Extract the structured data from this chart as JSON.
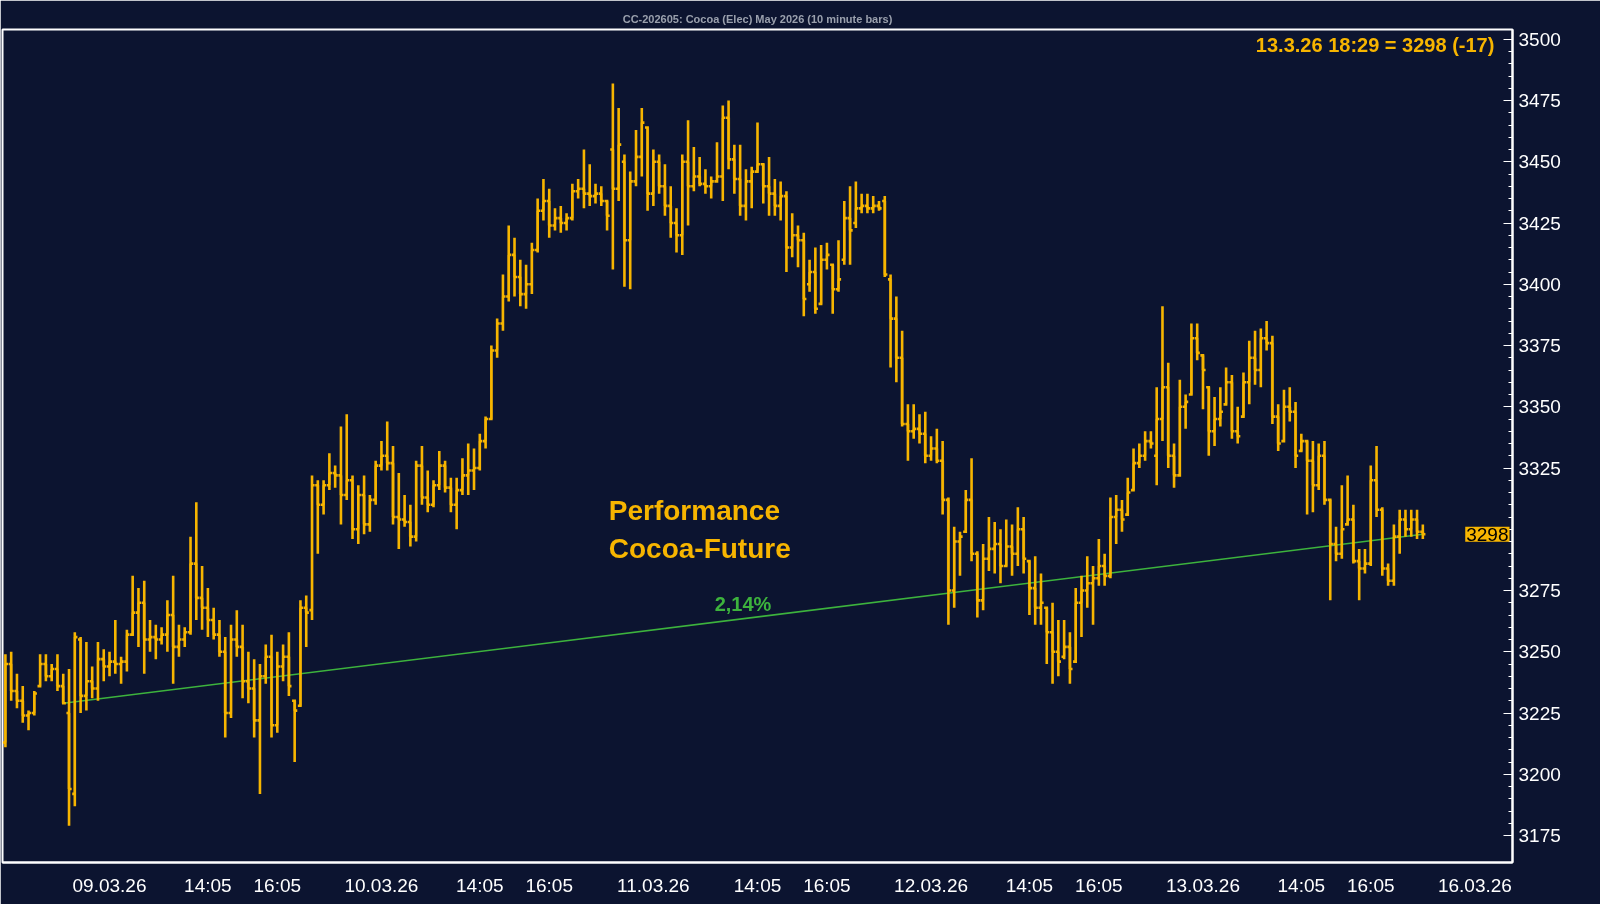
{
  "chart_data": {
    "type": "candlestick",
    "title": "CC-202605: Cocoa (Elec) May 2026 (10 minute bars)",
    "color": "#f7b500",
    "categories": [
      null,
      null,
      null,
      null,
      null,
      null,
      null,
      null,
      null,
      null,
      null,
      null,
      null,
      null,
      null,
      null,
      null,
      null,
      "09.03.26",
      null,
      null,
      null,
      null,
      null,
      null,
      null,
      null,
      null,
      null,
      null,
      null,
      null,
      null,
      null,
      null,
      "14:05",
      null,
      null,
      null,
      null,
      null,
      null,
      null,
      null,
      null,
      null,
      null,
      "16:05",
      null,
      null,
      null,
      null,
      null,
      null,
      null,
      null,
      null,
      null,
      null,
      null,
      null,
      null,
      null,
      null,
      null,
      "10.03.26",
      null,
      null,
      null,
      null,
      null,
      null,
      null,
      null,
      null,
      null,
      null,
      null,
      null,
      null,
      null,
      null,
      "14:05",
      null,
      null,
      null,
      null,
      null,
      null,
      null,
      null,
      null,
      null,
      null,
      "16:05",
      null,
      null,
      null,
      null,
      null,
      null,
      null,
      null,
      null,
      null,
      null,
      null,
      null,
      null,
      null,
      null,
      null,
      "11.03.26",
      null,
      null,
      null,
      null,
      null,
      null,
      null,
      null,
      null,
      null,
      null,
      null,
      null,
      null,
      null,
      null,
      null,
      "14:05",
      null,
      null,
      null,
      null,
      null,
      null,
      null,
      null,
      null,
      null,
      null,
      "16:05",
      null,
      null,
      null,
      null,
      null,
      null,
      null,
      null,
      null,
      null,
      null,
      null,
      null,
      null,
      null,
      null,
      null,
      "12.03.26",
      null,
      null,
      null,
      null,
      null,
      null,
      null,
      null,
      null,
      null,
      null,
      null,
      null,
      null,
      null,
      null,
      "14:05",
      null,
      null,
      null,
      null,
      null,
      null,
      null,
      null,
      null,
      null,
      null,
      "16:05",
      null,
      null,
      null,
      null,
      null,
      null,
      null,
      null,
      null,
      null,
      null,
      null,
      null,
      null,
      null,
      null,
      null,
      "13.03.26",
      null,
      null,
      null,
      null,
      null,
      null,
      null,
      null,
      null,
      null,
      null,
      null,
      null,
      null,
      null,
      null,
      "14:05",
      null,
      null,
      null,
      null,
      null,
      null,
      null,
      null,
      null,
      null,
      null,
      "16:05",
      null,
      null,
      null,
      null,
      null,
      null,
      null,
      null,
      null,
      null,
      null,
      null,
      null,
      null,
      null,
      null,
      null,
      "16.03.26",
      null,
      null,
      null,
      null,
      null,
      null
    ],
    "ohlc": [
      [
        3213,
        3249,
        3211,
        3245
      ],
      [
        3245,
        3250,
        3230,
        3234
      ],
      [
        3234,
        3241,
        3227,
        3230
      ],
      [
        3230,
        3236,
        3221,
        3224
      ],
      [
        3224,
        3226,
        3218,
        3225
      ],
      [
        3225,
        3234,
        3224,
        3233
      ],
      [
        3236,
        3249,
        3236,
        3245
      ],
      [
        3245,
        3249,
        3238,
        3240
      ],
      [
        3240,
        3245,
        3238,
        3243
      ],
      [
        3243,
        3249,
        3234,
        3236
      ],
      [
        3236,
        3241,
        3229,
        3229
      ],
      [
        3225,
        3243,
        3179,
        3194
      ],
      [
        3192,
        3258,
        3187,
        3256
      ],
      [
        3255,
        3256,
        3225,
        3232
      ],
      [
        3232,
        3254,
        3226,
        3238
      ],
      [
        3238,
        3244,
        3231,
        3235
      ],
      [
        3235,
        3254,
        3230,
        3247
      ],
      [
        3247,
        3251,
        3238,
        3244
      ],
      [
        3244,
        3250,
        3240,
        3246
      ],
      [
        3246,
        3263,
        3241,
        3245
      ],
      [
        3245,
        3248,
        3237,
        3246
      ],
      [
        3246,
        3259,
        3242,
        3257
      ],
      [
        3257,
        3281,
        3257,
        3266
      ],
      [
        3266,
        3276,
        3252,
        3270
      ],
      [
        3270,
        3279,
        3241,
        3255
      ],
      [
        3255,
        3263,
        3250,
        3256
      ],
      [
        3256,
        3261,
        3247,
        3255
      ],
      [
        3255,
        3260,
        3253,
        3257
      ],
      [
        3257,
        3271,
        3250,
        3265
      ],
      [
        3265,
        3281,
        3237,
        3252
      ],
      [
        3252,
        3261,
        3248,
        3255
      ],
      [
        3255,
        3260,
        3252,
        3258
      ],
      [
        3258,
        3297,
        3257,
        3286
      ],
      [
        3286,
        3311,
        3263,
        3272
      ],
      [
        3272,
        3285,
        3259,
        3268
      ],
      [
        3268,
        3276,
        3256,
        3263
      ],
      [
        3263,
        3268,
        3255,
        3257
      ],
      [
        3257,
        3263,
        3248,
        3250
      ],
      [
        3250,
        3256,
        3215,
        3225
      ],
      [
        3225,
        3261,
        3223,
        3255
      ],
      [
        3255,
        3267,
        3248,
        3252
      ],
      [
        3252,
        3261,
        3231,
        3238
      ],
      [
        3238,
        3250,
        3229,
        3235
      ],
      [
        3235,
        3247,
        3215,
        3222
      ],
      [
        3222,
        3245,
        3192,
        3240
      ],
      [
        3240,
        3253,
        3237,
        3248
      ],
      [
        3248,
        3257,
        3215,
        3220
      ],
      [
        3220,
        3250,
        3217,
        3244
      ],
      [
        3244,
        3253,
        3238,
        3248
      ],
      [
        3248,
        3258,
        3232,
        3236
      ],
      [
        3230,
        3230,
        3205,
        3226
      ],
      [
        3228,
        3271,
        3228,
        3268
      ],
      [
        3268,
        3273,
        3252,
        3266
      ],
      [
        3267,
        3322,
        3263,
        3318
      ],
      [
        3318,
        3320,
        3290,
        3310
      ],
      [
        3310,
        3320,
        3306,
        3318
      ],
      [
        3318,
        3331,
        3316,
        3323
      ],
      [
        3323,
        3326,
        3317,
        3322
      ],
      [
        3322,
        3342,
        3302,
        3314
      ],
      [
        3314,
        3347,
        3312,
        3320
      ],
      [
        3320,
        3322,
        3296,
        3300
      ],
      [
        3300,
        3318,
        3294,
        3314
      ],
      [
        3314,
        3322,
        3298,
        3302
      ],
      [
        3302,
        3314,
        3299,
        3312
      ],
      [
        3312,
        3328,
        3310,
        3326
      ],
      [
        3326,
        3336,
        3324,
        3330
      ],
      [
        3330,
        3344,
        3324,
        3327
      ],
      [
        3327,
        3334,
        3302,
        3305
      ],
      [
        3305,
        3323,
        3292,
        3304
      ],
      [
        3304,
        3314,
        3301,
        3303
      ],
      [
        3303,
        3310,
        3293,
        3297
      ],
      [
        3297,
        3328,
        3295,
        3326
      ],
      [
        3326,
        3334,
        3310,
        3313
      ],
      [
        3313,
        3324,
        3307,
        3310
      ],
      [
        3310,
        3320,
        3309,
        3318
      ],
      [
        3318,
        3332,
        3316,
        3326
      ],
      [
        3326,
        3328,
        3315,
        3317
      ],
      [
        3317,
        3321,
        3307,
        3310
      ],
      [
        3310,
        3321,
        3300,
        3316
      ],
      [
        3316,
        3329,
        3314,
        3322
      ],
      [
        3322,
        3335,
        3314,
        3324
      ],
      [
        3324,
        3333,
        3316,
        3325
      ],
      [
        3325,
        3339,
        3324,
        3336
      ],
      [
        3336,
        3346,
        3333,
        3345
      ],
      [
        3345,
        3375,
        3345,
        3373
      ],
      [
        3373,
        3386,
        3370,
        3384
      ],
      [
        3384,
        3404,
        3381,
        3395
      ],
      [
        3395,
        3424,
        3393,
        3412
      ],
      [
        3412,
        3419,
        3395,
        3403
      ],
      [
        3403,
        3410,
        3391,
        3396
      ],
      [
        3396,
        3408,
        3390,
        3400
      ],
      [
        3400,
        3417,
        3396,
        3414
      ],
      [
        3414,
        3435,
        3413,
        3430
      ],
      [
        3430,
        3443,
        3426,
        3434
      ],
      [
        3434,
        3439,
        3419,
        3424
      ],
      [
        3424,
        3431,
        3422,
        3427
      ],
      [
        3427,
        3432,
        3421,
        3425
      ],
      [
        3425,
        3429,
        3422,
        3427
      ],
      [
        3427,
        3441,
        3426,
        3438
      ],
      [
        3438,
        3443,
        3435,
        3439
      ],
      [
        3439,
        3455,
        3431,
        3437
      ],
      [
        3437,
        3449,
        3432,
        3436
      ],
      [
        3436,
        3441,
        3433,
        3437
      ],
      [
        3437,
        3440,
        3432,
        3434
      ],
      [
        3434,
        3434,
        3422,
        3428
      ],
      [
        3455,
        3482,
        3406,
        3439
      ],
      [
        3439,
        3472,
        3434,
        3457
      ],
      [
        3450,
        3453,
        3399,
        3418
      ],
      [
        3418,
        3446,
        3398,
        3442
      ],
      [
        3442,
        3463,
        3440,
        3452
      ],
      [
        3452,
        3472,
        3444,
        3466
      ],
      [
        3464,
        3464,
        3430,
        3437
      ],
      [
        3437,
        3455,
        3432,
        3450
      ],
      [
        3450,
        3453,
        3437,
        3440
      ],
      [
        3440,
        3449,
        3428,
        3432
      ],
      [
        3432,
        3440,
        3419,
        3425
      ],
      [
        3425,
        3431,
        3413,
        3420
      ],
      [
        3420,
        3453,
        3412,
        3450
      ],
      [
        3450,
        3467,
        3424,
        3440
      ],
      [
        3440,
        3456,
        3438,
        3444
      ],
      [
        3444,
        3452,
        3440,
        3441
      ],
      [
        3441,
        3447,
        3437,
        3440
      ],
      [
        3440,
        3444,
        3435,
        3442
      ],
      [
        3442,
        3458,
        3442,
        3444
      ],
      [
        3444,
        3473,
        3434,
        3468
      ],
      [
        3468,
        3475,
        3447,
        3451
      ],
      [
        3451,
        3457,
        3437,
        3443
      ],
      [
        3443,
        3457,
        3428,
        3432
      ],
      [
        3432,
        3447,
        3426,
        3442
      ],
      [
        3442,
        3448,
        3431,
        3446
      ],
      [
        3446,
        3466,
        3446,
        3449
      ],
      [
        3449,
        3449,
        3433,
        3440
      ],
      [
        3440,
        3452,
        3428,
        3437
      ],
      [
        3437,
        3443,
        3428,
        3432
      ],
      [
        3432,
        3442,
        3426,
        3436
      ],
      [
        3436,
        3438,
        3405,
        3415
      ],
      [
        3415,
        3429,
        3411,
        3420
      ],
      [
        3420,
        3424,
        3407,
        3418
      ],
      [
        3418,
        3421,
        3387,
        3394
      ],
      [
        3400,
        3410,
        3397,
        3405
      ],
      [
        3405,
        3415,
        3388,
        3390
      ],
      [
        3392,
        3416,
        3392,
        3410
      ],
      [
        3410,
        3417,
        3406,
        3412
      ],
      [
        3408,
        3408,
        3388,
        3398
      ],
      [
        3398,
        3418,
        3397,
        3402
      ],
      [
        3410,
        3434,
        3408,
        3427
      ],
      [
        3427,
        3440,
        3408,
        3422
      ],
      [
        3425,
        3442,
        3423,
        3431
      ],
      [
        3431,
        3437,
        3429,
        3432
      ],
      [
        3432,
        3437,
        3429,
        3431
      ],
      [
        3431,
        3436,
        3429,
        3432
      ],
      [
        3432,
        3434,
        3430,
        3431
      ],
      [
        3434,
        3436,
        3403,
        3404
      ],
      [
        3402,
        3404,
        3366,
        3386
      ],
      [
        3386,
        3395,
        3360,
        3370
      ],
      [
        3370,
        3381,
        3342,
        3343
      ],
      [
        3343,
        3351,
        3328,
        3340
      ],
      [
        3340,
        3351,
        3337,
        3341
      ],
      [
        3341,
        3347,
        3335,
        3339
      ],
      [
        3339,
        3348,
        3327,
        3330
      ],
      [
        3330,
        3338,
        3328,
        3333
      ],
      [
        3333,
        3341,
        3327,
        3328
      ],
      [
        3328,
        3336,
        3306,
        3312
      ],
      [
        3312,
        3313,
        3261,
        3275
      ],
      [
        3275,
        3301,
        3268,
        3295
      ],
      [
        3295,
        3299,
        3281,
        3297
      ],
      [
        3299,
        3316,
        3299,
        3312
      ],
      [
        3312,
        3329,
        3287,
        3290
      ],
      [
        3290,
        3291,
        3264,
        3271
      ],
      [
        3271,
        3294,
        3267,
        3288
      ],
      [
        3288,
        3305,
        3283,
        3292
      ],
      [
        3292,
        3303,
        3282,
        3294
      ],
      [
        3294,
        3300,
        3278,
        3285
      ],
      [
        3285,
        3304,
        3285,
        3293
      ],
      [
        3293,
        3302,
        3281,
        3290
      ],
      [
        3290,
        3309,
        3285,
        3300
      ],
      [
        3300,
        3305,
        3282,
        3288
      ],
      [
        3287,
        3287,
        3265,
        3276
      ],
      [
        3276,
        3289,
        3261,
        3268
      ],
      [
        3268,
        3282,
        3261,
        3270
      ],
      [
        3268,
        3268,
        3245,
        3258
      ],
      [
        3258,
        3270,
        3237,
        3250
      ],
      [
        3250,
        3263,
        3240,
        3246
      ],
      [
        3248,
        3263,
        3247,
        3252
      ],
      [
        3252,
        3258,
        3237,
        3243
      ],
      [
        3246,
        3276,
        3246,
        3270
      ],
      [
        3270,
        3281,
        3256,
        3275
      ],
      [
        3275,
        3289,
        3268,
        3278
      ],
      [
        3278,
        3285,
        3261,
        3280
      ],
      [
        3280,
        3296,
        3277,
        3285
      ],
      [
        3285,
        3290,
        3277,
        3281
      ],
      [
        3281,
        3313,
        3280,
        3305
      ],
      [
        3305,
        3314,
        3294,
        3308
      ],
      [
        3308,
        3312,
        3299,
        3304
      ],
      [
        3306,
        3321,
        3306,
        3315
      ],
      [
        3316,
        3333,
        3316,
        3327
      ],
      [
        3327,
        3335,
        3325,
        3330
      ],
      [
        3330,
        3340,
        3328,
        3336
      ],
      [
        3336,
        3340,
        3333,
        3335
      ],
      [
        3330,
        3358,
        3318,
        3345
      ],
      [
        3345,
        3391,
        3336,
        3358
      ],
      [
        3358,
        3368,
        3325,
        3330
      ],
      [
        3330,
        3335,
        3317,
        3322
      ],
      [
        3322,
        3361,
        3322,
        3350
      ],
      [
        3350,
        3355,
        3341,
        3352
      ],
      [
        3355,
        3384,
        3355,
        3378
      ],
      [
        3378,
        3384,
        3369,
        3372
      ],
      [
        3371,
        3371,
        3349,
        3365
      ],
      [
        3358,
        3358,
        3330,
        3340
      ],
      [
        3340,
        3354,
        3334,
        3345
      ],
      [
        3345,
        3358,
        3342,
        3348
      ],
      [
        3351,
        3366,
        3351,
        3360
      ],
      [
        3360,
        3363,
        3337,
        3340
      ],
      [
        3340,
        3350,
        3335,
        3338
      ],
      [
        3346,
        3364,
        3346,
        3360
      ],
      [
        3360,
        3377,
        3351,
        3370
      ],
      [
        3370,
        3381,
        3359,
        3365
      ],
      [
        3365,
        3382,
        3358,
        3378
      ],
      [
        3378,
        3385,
        3373,
        3376
      ],
      [
        3376,
        3379,
        3343,
        3346
      ],
      [
        3346,
        3351,
        3332,
        3335
      ],
      [
        3336,
        3357,
        3336,
        3350
      ],
      [
        3350,
        3358,
        3344,
        3348
      ],
      [
        3348,
        3352,
        3325,
        3330
      ],
      [
        3332,
        3339,
        3332,
        3336
      ],
      [
        3336,
        3336,
        3306,
        3328
      ],
      [
        3328,
        3336,
        3307,
        3318
      ],
      [
        3318,
        3335,
        3316,
        3330
      ],
      [
        3330,
        3336,
        3310,
        3312
      ],
      [
        3312,
        3312,
        3271,
        3294
      ],
      [
        3294,
        3301,
        3287,
        3290
      ],
      [
        3290,
        3318,
        3288,
        3300
      ],
      [
        3302,
        3322,
        3302,
        3304
      ],
      [
        3304,
        3310,
        3286,
        3287
      ],
      [
        3287,
        3292,
        3271,
        3284
      ],
      [
        3284,
        3292,
        3282,
        3286
      ],
      [
        3286,
        3326,
        3285,
        3320
      ],
      [
        3320,
        3334,
        3305,
        3308
      ],
      [
        3308,
        3309,
        3281,
        3284
      ],
      [
        3284,
        3286,
        3277,
        3279
      ],
      [
        3279,
        3302,
        3277,
        3297
      ],
      [
        3297,
        3308,
        3290,
        3304
      ],
      [
        3304,
        3308,
        3297,
        3300
      ],
      [
        3300,
        3308,
        3297,
        3304
      ],
      [
        3304,
        3308,
        3296,
        3299
      ],
      [
        3299,
        3302,
        3296,
        3298
      ],
      null,
      null,
      null,
      null,
      null,
      null,
      null,
      null,
      null,
      null,
      null,
      null,
      null,
      null,
      null
    ],
    "series": [
      {
        "type": "line",
        "name": "2,14%",
        "color": "#3db33d",
        "values": [
          null,
          null,
          null,
          null,
          null,
          null,
          null,
          null,
          null,
          null,
          3229,
          null,
          null,
          null,
          null,
          null,
          null,
          null,
          null,
          null,
          null,
          null,
          null,
          null,
          null,
          null,
          null,
          null,
          null,
          null,
          null,
          null,
          null,
          null,
          null,
          null,
          null,
          null,
          null,
          null,
          null,
          null,
          null,
          null,
          null,
          null,
          null,
          null,
          null,
          null,
          null,
          null,
          null,
          null,
          null,
          null,
          null,
          null,
          null,
          null,
          null,
          null,
          null,
          null,
          null,
          null,
          null,
          null,
          null,
          null,
          null,
          null,
          null,
          null,
          null,
          null,
          null,
          null,
          null,
          null,
          null,
          null,
          null,
          null,
          null,
          null,
          null,
          null,
          null,
          null,
          null,
          null,
          null,
          null,
          null,
          null,
          null,
          null,
          null,
          null,
          null,
          null,
          null,
          null,
          null,
          null,
          null,
          null,
          null,
          null,
          null,
          null,
          null,
          null,
          null,
          null,
          null,
          null,
          null,
          null,
          null,
          null,
          null,
          null,
          null,
          null,
          null,
          null,
          null,
          null,
          null,
          null,
          null,
          null,
          null,
          null,
          null,
          null,
          null,
          null,
          null,
          null,
          null,
          null,
          null,
          null,
          null,
          null,
          null,
          null,
          null,
          null,
          null,
          null,
          null,
          null,
          null,
          null,
          null,
          null,
          null,
          null,
          null,
          null,
          null,
          null,
          null,
          null,
          null,
          null,
          null,
          null,
          null,
          null,
          null,
          null,
          null,
          null,
          null,
          null,
          null,
          null,
          null,
          null,
          null,
          null,
          null,
          null,
          null,
          null,
          null,
          null,
          null,
          null,
          null,
          null,
          null,
          null,
          null,
          null,
          null,
          null,
          null,
          null,
          null,
          null,
          null,
          null,
          null,
          null,
          null,
          null,
          null,
          null,
          null,
          null,
          null,
          null,
          null,
          null,
          null,
          null,
          null,
          null,
          null,
          null,
          null,
          null,
          null,
          null,
          null,
          null,
          null,
          null,
          null,
          null,
          null,
          null,
          null,
          null,
          null,
          null,
          null,
          null,
          null,
          3298,
          null,
          null,
          null,
          null,
          null,
          null,
          null,
          null,
          null,
          null,
          null,
          null,
          null,
          null,
          null
        ]
      }
    ],
    "ylim": [
      3164,
      3504
    ],
    "yticks": [
      3175,
      3200,
      3225,
      3250,
      3275,
      {
        "value": 3300,
        "label": null
      },
      3325,
      3350,
      3375,
      3400,
      3425,
      3450,
      3475,
      3500
    ],
    "annotations": [
      "Performance\nCocoa-Future",
      "13.3.26 18:29 = 3298 (-17)",
      "3298"
    ]
  }
}
